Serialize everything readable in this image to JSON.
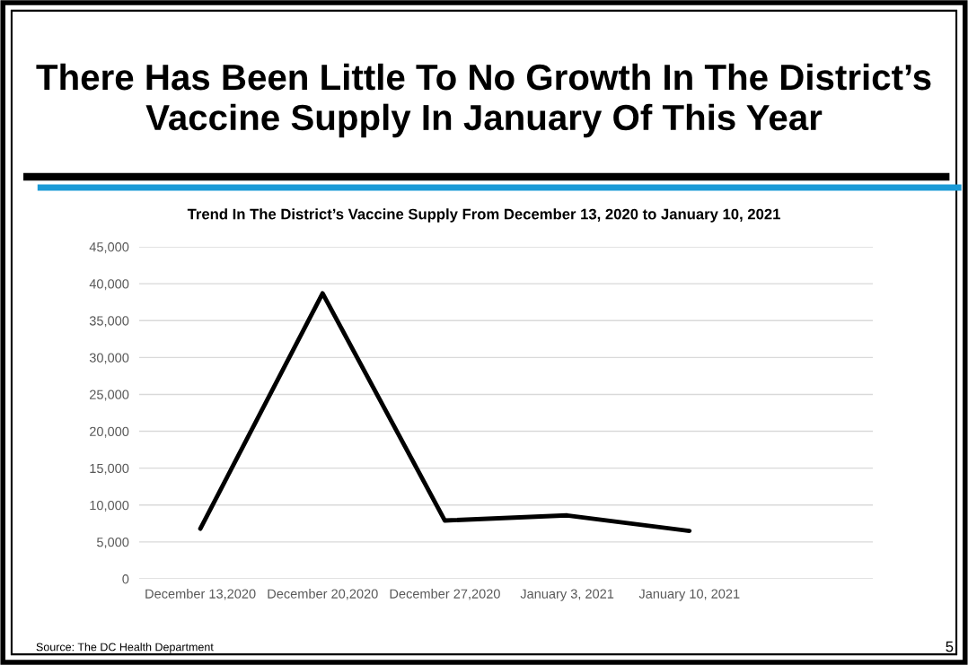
{
  "chart_data": {
    "type": "line",
    "title": "There Has Been Little To No Growth In The District’s\nVaccine Supply In January Of This Year",
    "subtitle": "Trend In The District’s Vaccine Supply From December 13, 2020 to January 10, 2021",
    "categories": [
      "December 13,2020",
      "December 20,2020",
      "December 27,2020",
      "January 3, 2021",
      "January 10, 2021",
      null
    ],
    "series": [
      {
        "color": "#000000",
        "values": [
          6800,
          38700,
          7900,
          8600,
          6500,
          null
        ]
      }
    ],
    "ylim": [
      0,
      45000
    ],
    "yticks": [
      {
        "value": 0,
        "label": "0"
      },
      {
        "value": 5000,
        "label": "5,000"
      },
      {
        "value": 10000,
        "label": "10,000"
      },
      {
        "value": 15000,
        "label": "15,000"
      },
      {
        "value": 20000,
        "label": "20,000"
      },
      {
        "value": 25000,
        "label": "25,000"
      },
      {
        "value": 30000,
        "label": "30,000"
      },
      {
        "value": 35000,
        "label": "35,000"
      },
      {
        "value": 40000,
        "label": "40,000"
      },
      {
        "value": 45000,
        "label": "45,000"
      }
    ],
    "grid": "y",
    "legend": false,
    "marker": "none",
    "line_style": "solid",
    "annotations": [
      "Source: The DC Health Department",
      "5"
    ]
  }
}
